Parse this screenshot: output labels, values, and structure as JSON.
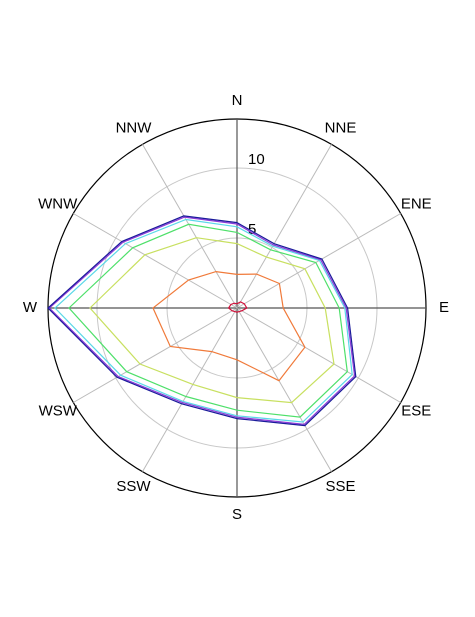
{
  "chart_data": {
    "type": "radar",
    "categories": [
      "N",
      "NNE",
      "ENE",
      "E",
      "ESE",
      "SSE",
      "S",
      "SSW",
      "WSW",
      "W",
      "WNW",
      "NNW"
    ],
    "rlim": [
      0,
      13.5
    ],
    "rticks": [
      5,
      10
    ],
    "grid": true,
    "stacked": true,
    "series": [
      {
        "color": "#d0103a",
        "values": [
          0.3,
          0.5,
          0.6,
          0.7,
          0.4,
          0.3,
          0.3,
          0.3,
          0.4,
          0.6,
          0.5,
          0.4
        ]
      },
      {
        "color": "#f07a3a",
        "values": [
          2.1,
          2.3,
          2.9,
          2.6,
          5.2,
          5.7,
          3.4,
          3.3,
          5.1,
          5.4,
          3.5,
          2.6
        ]
      },
      {
        "color": "#c8e060",
        "values": [
          2.2,
          1.4,
          2.1,
          3.0,
          2.4,
          1.8,
          2.7,
          2.7,
          2.5,
          4.5,
          3.6,
          2.8
        ]
      },
      {
        "color": "#4ee06a",
        "values": [
          0.8,
          0.6,
          0.9,
          1.0,
          1.1,
          1.2,
          0.9,
          1.0,
          1.1,
          1.5,
          1.0,
          1.1
        ]
      },
      {
        "color": "#5ad8e8",
        "values": [
          0.4,
          0.3,
          0.3,
          0.4,
          0.4,
          0.4,
          0.4,
          0.4,
          0.5,
          1.0,
          0.6,
          0.4
        ]
      },
      {
        "color": "#8a3ad8",
        "values": [
          0.2,
          0.1,
          0.1,
          0.1,
          0.2,
          0.2,
          0.1,
          0.1,
          0.2,
          0.4,
          0.2,
          0.2
        ]
      },
      {
        "color": "#1a1a9a",
        "values": [
          0.1,
          0.1,
          0.1,
          0.1,
          0.1,
          0.1,
          0.1,
          0.1,
          0.1,
          0.1,
          0.1,
          0.1
        ]
      }
    ]
  }
}
